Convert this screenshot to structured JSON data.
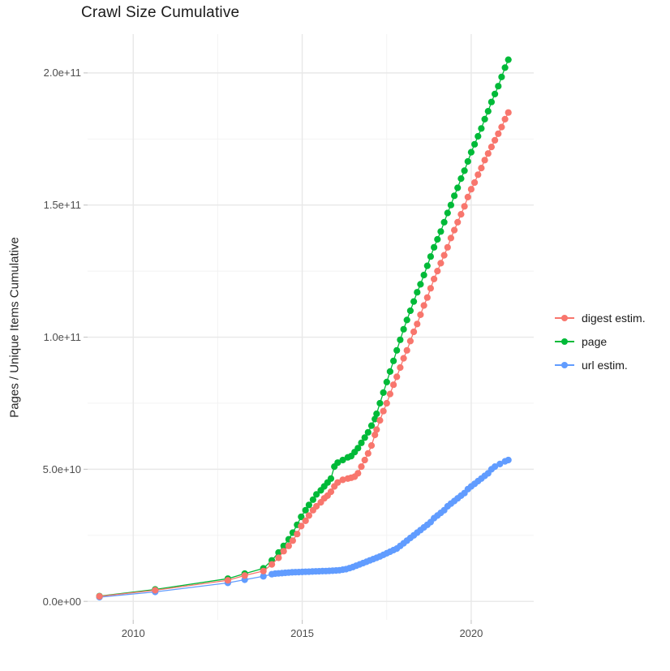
{
  "title": "Crawl Size Cumulative",
  "chart_data": {
    "type": "scatter",
    "title": "Crawl Size Cumulative",
    "xlabel": "",
    "ylabel": "Pages / Unique Items Cumulative",
    "grid": true,
    "legend_position": "right",
    "x_domain": [
      2008.65,
      2021.85
    ],
    "y_domain": [
      -7000000000.0,
      214700000000.0
    ],
    "x_ticks": [
      {
        "value": 2010,
        "label": "2010"
      },
      {
        "value": 2015,
        "label": "2015"
      },
      {
        "value": 2020,
        "label": "2020"
      }
    ],
    "x_minor": [
      2012.5,
      2017.5
    ],
    "y_ticks": [
      {
        "value": 0.0,
        "label": "0.0e+00"
      },
      {
        "value": 50000000000.0,
        "label": "5.0e+10"
      },
      {
        "value": 100000000000.0,
        "label": "1.0e+11"
      },
      {
        "value": 150000000000.0,
        "label": "1.5e+11"
      },
      {
        "value": 200000000000.0,
        "label": "2.0e+11"
      }
    ],
    "y_minor": [
      25000000000.0,
      75000000000.0,
      125000000000.0,
      175000000000.0
    ],
    "series": [
      {
        "name": "digest estim.",
        "color": "#F8766D",
        "points": [
          [
            2009.0,
            1900000000.0
          ],
          [
            2010.65,
            4200000000.0
          ],
          [
            2012.8,
            8000000000.0
          ],
          [
            2013.3,
            9800000000.0
          ],
          [
            2013.85,
            11500000000.0
          ],
          [
            2014.1,
            14000000000.0
          ],
          [
            2014.3,
            16500000000.0
          ],
          [
            2014.45,
            19000000000.0
          ],
          [
            2014.6,
            21000000000.0
          ],
          [
            2014.72,
            23000000000.0
          ],
          [
            2014.85,
            25500000000.0
          ],
          [
            2014.97,
            28500000000.0
          ],
          [
            2015.1,
            30500000000.0
          ],
          [
            2015.2,
            32500000000.0
          ],
          [
            2015.32,
            34500000000.0
          ],
          [
            2015.42,
            36000000000.0
          ],
          [
            2015.55,
            37500000000.0
          ],
          [
            2015.65,
            39000000000.0
          ],
          [
            2015.75,
            40000000000.0
          ],
          [
            2015.85,
            41500000000.0
          ],
          [
            2015.95,
            43500000000.0
          ],
          [
            2016.05,
            45000000000.0
          ],
          [
            2016.2,
            46000000000.0
          ],
          [
            2016.35,
            46500000000.0
          ],
          [
            2016.45,
            46800000000.0
          ],
          [
            2016.55,
            47200000000.0
          ],
          [
            2016.65,
            48500000000.0
          ],
          [
            2016.75,
            51000000000.0
          ],
          [
            2016.85,
            53500000000.0
          ],
          [
            2016.95,
            56000000000.0
          ],
          [
            2017.05,
            59000000000.0
          ],
          [
            2017.15,
            63000000000.0
          ],
          [
            2017.2,
            65000000000.0
          ],
          [
            2017.3,
            68500000000.0
          ],
          [
            2017.4,
            72000000000.0
          ],
          [
            2017.5,
            75000000000.0
          ],
          [
            2017.6,
            78500000000.0
          ],
          [
            2017.7,
            82000000000.0
          ],
          [
            2017.8,
            85000000000.0
          ],
          [
            2017.9,
            88500000000.0
          ],
          [
            2018.0,
            92000000000.0
          ],
          [
            2018.1,
            95000000000.0
          ],
          [
            2018.2,
            98500000000.0
          ],
          [
            2018.3,
            102000000000.0
          ],
          [
            2018.4,
            105000000000.0
          ],
          [
            2018.5,
            108500000000.0
          ],
          [
            2018.6,
            112000000000.0
          ],
          [
            2018.7,
            115000000000.0
          ],
          [
            2018.8,
            118500000000.0
          ],
          [
            2018.9,
            122000000000.0
          ],
          [
            2019.0,
            125000000000.0
          ],
          [
            2019.1,
            128000000000.0
          ],
          [
            2019.2,
            131000000000.0
          ],
          [
            2019.3,
            134000000000.0
          ],
          [
            2019.4,
            137500000000.0
          ],
          [
            2019.5,
            140500000000.0
          ],
          [
            2019.6,
            143500000000.0
          ],
          [
            2019.7,
            146500000000.0
          ],
          [
            2019.8,
            149500000000.0
          ],
          [
            2019.9,
            153000000000.0
          ],
          [
            2020.0,
            156000000000.0
          ],
          [
            2020.1,
            158500000000.0
          ],
          [
            2020.2,
            161500000000.0
          ],
          [
            2020.3,
            164000000000.0
          ],
          [
            2020.4,
            167000000000.0
          ],
          [
            2020.5,
            169500000000.0
          ],
          [
            2020.6,
            172000000000.0
          ],
          [
            2020.7,
            174500000000.0
          ],
          [
            2020.8,
            177000000000.0
          ],
          [
            2020.9,
            179500000000.0
          ],
          [
            2021.0,
            182500000000.0
          ],
          [
            2021.1,
            185000000000.0
          ]
        ]
      },
      {
        "name": "page",
        "color": "#00BA38",
        "points": [
          [
            2009.0,
            2000000000.0
          ],
          [
            2010.65,
            4500000000.0
          ],
          [
            2012.8,
            8600000000.0
          ],
          [
            2013.3,
            10500000000.0
          ],
          [
            2013.85,
            12500000000.0
          ],
          [
            2014.1,
            15500000000.0
          ],
          [
            2014.3,
            18500000000.0
          ],
          [
            2014.45,
            21000000000.0
          ],
          [
            2014.6,
            23500000000.0
          ],
          [
            2014.72,
            26000000000.0
          ],
          [
            2014.85,
            29000000000.0
          ],
          [
            2014.97,
            32000000000.0
          ],
          [
            2015.1,
            34500000000.0
          ],
          [
            2015.2,
            36500000000.0
          ],
          [
            2015.32,
            38500000000.0
          ],
          [
            2015.42,
            40500000000.0
          ],
          [
            2015.55,
            42000000000.0
          ],
          [
            2015.65,
            43500000000.0
          ],
          [
            2015.75,
            45000000000.0
          ],
          [
            2015.85,
            46500000000.0
          ],
          [
            2015.95,
            51000000000.0
          ],
          [
            2016.05,
            52500000000.0
          ],
          [
            2016.2,
            53500000000.0
          ],
          [
            2016.35,
            54500000000.0
          ],
          [
            2016.45,
            55000000000.0
          ],
          [
            2016.55,
            56500000000.0
          ],
          [
            2016.65,
            58000000000.0
          ],
          [
            2016.75,
            60000000000.0
          ],
          [
            2016.85,
            62000000000.0
          ],
          [
            2016.95,
            64000000000.0
          ],
          [
            2017.05,
            66500000000.0
          ],
          [
            2017.15,
            69000000000.0
          ],
          [
            2017.2,
            71000000000.0
          ],
          [
            2017.3,
            75000000000.0
          ],
          [
            2017.4,
            79000000000.0
          ],
          [
            2017.5,
            83000000000.0
          ],
          [
            2017.6,
            87000000000.0
          ],
          [
            2017.7,
            91000000000.0
          ],
          [
            2017.8,
            95000000000.0
          ],
          [
            2017.9,
            99000000000.0
          ],
          [
            2018.0,
            103000000000.0
          ],
          [
            2018.1,
            106500000000.0
          ],
          [
            2018.2,
            110000000000.0
          ],
          [
            2018.3,
            113500000000.0
          ],
          [
            2018.4,
            117000000000.0
          ],
          [
            2018.5,
            120000000000.0
          ],
          [
            2018.6,
            123500000000.0
          ],
          [
            2018.7,
            127000000000.0
          ],
          [
            2018.8,
            130500000000.0
          ],
          [
            2018.9,
            134000000000.0
          ],
          [
            2019.0,
            137000000000.0
          ],
          [
            2019.1,
            140000000000.0
          ],
          [
            2019.2,
            143500000000.0
          ],
          [
            2019.3,
            147000000000.0
          ],
          [
            2019.4,
            150000000000.0
          ],
          [
            2019.5,
            153500000000.0
          ],
          [
            2019.6,
            156500000000.0
          ],
          [
            2019.7,
            160000000000.0
          ],
          [
            2019.8,
            163000000000.0
          ],
          [
            2019.9,
            166500000000.0
          ],
          [
            2020.0,
            170000000000.0
          ],
          [
            2020.1,
            173000000000.0
          ],
          [
            2020.2,
            176000000000.0
          ],
          [
            2020.3,
            179000000000.0
          ],
          [
            2020.4,
            182500000000.0
          ],
          [
            2020.5,
            185500000000.0
          ],
          [
            2020.6,
            189000000000.0
          ],
          [
            2020.7,
            192000000000.0
          ],
          [
            2020.8,
            195000000000.0
          ],
          [
            2020.9,
            198500000000.0
          ],
          [
            2021.0,
            202000000000.0
          ],
          [
            2021.1,
            205000000000.0
          ]
        ]
      },
      {
        "name": "url estim.",
        "color": "#619CFF",
        "points": [
          [
            2009.0,
            1600000000.0
          ],
          [
            2010.65,
            3600000000.0
          ],
          [
            2012.8,
            7000000000.0
          ],
          [
            2013.3,
            8200000000.0
          ],
          [
            2013.85,
            9500000000.0
          ],
          [
            2014.1,
            10300000000.0
          ],
          [
            2014.2,
            10500000000.0
          ],
          [
            2014.3,
            10600000000.0
          ],
          [
            2014.4,
            10700000000.0
          ],
          [
            2014.5,
            10800000000.0
          ],
          [
            2014.6,
            10900000000.0
          ],
          [
            2014.7,
            11000000000.0
          ],
          [
            2014.8,
            11050000000.0
          ],
          [
            2014.9,
            11100000000.0
          ],
          [
            2015.0,
            11150000000.0
          ],
          [
            2015.1,
            11200000000.0
          ],
          [
            2015.2,
            11250000000.0
          ],
          [
            2015.3,
            11300000000.0
          ],
          [
            2015.4,
            11350000000.0
          ],
          [
            2015.5,
            11400000000.0
          ],
          [
            2015.6,
            11450000000.0
          ],
          [
            2015.7,
            11500000000.0
          ],
          [
            2015.8,
            11550000000.0
          ],
          [
            2015.9,
            11600000000.0
          ],
          [
            2016.0,
            11700000000.0
          ],
          [
            2016.1,
            11800000000.0
          ],
          [
            2016.2,
            12000000000.0
          ],
          [
            2016.3,
            12200000000.0
          ],
          [
            2016.4,
            12600000000.0
          ],
          [
            2016.5,
            13000000000.0
          ],
          [
            2016.6,
            13500000000.0
          ],
          [
            2016.7,
            14000000000.0
          ],
          [
            2016.8,
            14500000000.0
          ],
          [
            2016.9,
            15000000000.0
          ],
          [
            2017.0,
            15500000000.0
          ],
          [
            2017.1,
            16000000000.0
          ],
          [
            2017.2,
            16500000000.0
          ],
          [
            2017.3,
            17000000000.0
          ],
          [
            2017.4,
            17600000000.0
          ],
          [
            2017.5,
            18200000000.0
          ],
          [
            2017.6,
            18800000000.0
          ],
          [
            2017.7,
            19400000000.0
          ],
          [
            2017.8,
            20000000000.0
          ],
          [
            2017.9,
            21000000000.0
          ],
          [
            2018.0,
            22000000000.0
          ],
          [
            2018.1,
            23000000000.0
          ],
          [
            2018.2,
            24000000000.0
          ],
          [
            2018.3,
            25000000000.0
          ],
          [
            2018.4,
            26000000000.0
          ],
          [
            2018.5,
            27000000000.0
          ],
          [
            2018.6,
            28000000000.0
          ],
          [
            2018.7,
            29000000000.0
          ],
          [
            2018.8,
            30000000000.0
          ],
          [
            2018.9,
            31500000000.0
          ],
          [
            2019.0,
            32500000000.0
          ],
          [
            2019.1,
            33500000000.0
          ],
          [
            2019.2,
            34500000000.0
          ],
          [
            2019.3,
            36000000000.0
          ],
          [
            2019.4,
            37000000000.0
          ],
          [
            2019.5,
            38000000000.0
          ],
          [
            2019.6,
            39000000000.0
          ],
          [
            2019.7,
            40000000000.0
          ],
          [
            2019.8,
            41000000000.0
          ],
          [
            2019.9,
            42500000000.0
          ],
          [
            2020.0,
            43500000000.0
          ],
          [
            2020.1,
            44500000000.0
          ],
          [
            2020.2,
            45500000000.0
          ],
          [
            2020.3,
            46500000000.0
          ],
          [
            2020.4,
            47500000000.0
          ],
          [
            2020.5,
            48500000000.0
          ],
          [
            2020.6,
            50000000000.0
          ],
          [
            2020.7,
            51000000000.0
          ],
          [
            2020.85,
            52000000000.0
          ],
          [
            2021.0,
            53000000000.0
          ],
          [
            2021.1,
            53500000000.0
          ]
        ]
      }
    ],
    "style": {
      "grid_major_color": "#e8e8e8",
      "grid_minor_color": "#f2f2f2",
      "tick_mark_color": "#c9c9c9",
      "point_radius": 4.1,
      "line_width": 1.3
    }
  },
  "legend": {
    "items": [
      {
        "label": "digest estim."
      },
      {
        "label": "page"
      },
      {
        "label": "url estim."
      }
    ]
  }
}
